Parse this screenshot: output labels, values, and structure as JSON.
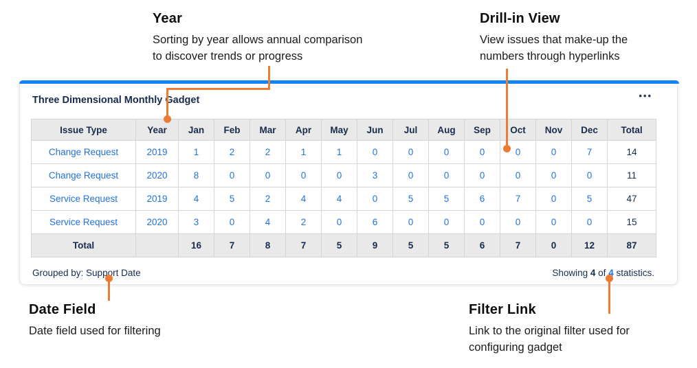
{
  "annotations": {
    "year": {
      "heading": "Year",
      "body": [
        "Sorting by year allows annual comparison",
        "to discover trends or progress"
      ]
    },
    "drill_in": {
      "heading": "Drill-in View",
      "body": [
        "View issues that make-up the",
        "numbers through hyperlinks"
      ]
    },
    "date_field": {
      "heading": "Date Field",
      "body": [
        "Date field used for filtering"
      ]
    },
    "filter_link": {
      "heading": "Filter Link",
      "body": [
        "Link to the original filter used for",
        "configuring gadget"
      ]
    }
  },
  "gadget": {
    "title": "Three Dimensional Monthly Gadget",
    "menu_icon": "ellipsis-menu",
    "grouped_by": "Grouped by: Support Date",
    "showing": {
      "prefix": "Showing",
      "count": "4",
      "of": "of",
      "total_link": "4",
      "suffix": "statistics."
    }
  },
  "table": {
    "columns": [
      "Issue Type",
      "Year",
      "Jan",
      "Feb",
      "Mar",
      "Apr",
      "May",
      "Jun",
      "Jul",
      "Aug",
      "Sep",
      "Oct",
      "Nov",
      "Dec",
      "Total"
    ],
    "rows": [
      {
        "issue_type": "Change Request",
        "year": "2019",
        "monthly": [
          1,
          2,
          2,
          1,
          1,
          0,
          0,
          0,
          0,
          0,
          0,
          7
        ],
        "total": 14
      },
      {
        "issue_type": "Change Request",
        "year": "2020",
        "monthly": [
          8,
          0,
          0,
          0,
          0,
          3,
          0,
          0,
          0,
          0,
          0,
          0
        ],
        "total": 11
      },
      {
        "issue_type": "Service Request",
        "year": "2019",
        "monthly": [
          4,
          5,
          2,
          4,
          4,
          0,
          5,
          5,
          6,
          7,
          0,
          5
        ],
        "total": 47
      },
      {
        "issue_type": "Service Request",
        "year": "2020",
        "monthly": [
          3,
          0,
          4,
          2,
          0,
          6,
          0,
          0,
          0,
          0,
          0,
          0
        ],
        "total": 15
      }
    ],
    "total_row": {
      "label": "Total",
      "monthly": [
        16,
        7,
        8,
        7,
        5,
        9,
        5,
        5,
        6,
        7,
        0,
        12
      ],
      "total": 87
    }
  },
  "colors": {
    "accent_blue": "#1285f5",
    "link_blue": "#2372db",
    "navy_text": "#172b4d",
    "annotation_orange": "#ec7c33",
    "header_bg": "#e9e9e9"
  }
}
